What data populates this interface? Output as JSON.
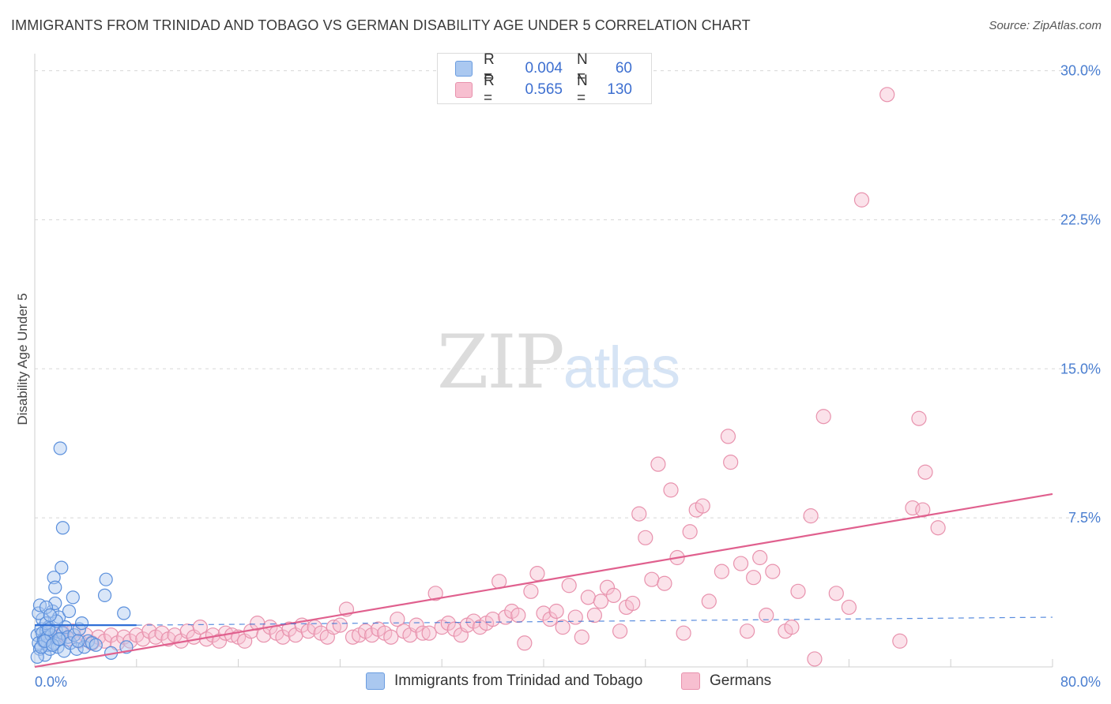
{
  "header": {
    "title": "IMMIGRANTS FROM TRINIDAD AND TOBAGO VS GERMAN DISABILITY AGE UNDER 5 CORRELATION CHART",
    "source": "Source: ZipAtlas.com"
  },
  "watermark": {
    "zip": "ZIP",
    "atlas": "atlas"
  },
  "legend": {
    "rows": [
      {
        "r_label": "R =",
        "r_value": "0.004",
        "n_label": "N =",
        "n_value": "60",
        "fill": "#aac8f0",
        "stroke": "#6b9de0"
      },
      {
        "r_label": "R =",
        "r_value": "0.565",
        "n_label": "N =",
        "n_value": "130",
        "fill": "#f7bfd0",
        "stroke": "#e892ad"
      }
    ]
  },
  "bottom_legend": {
    "series_a": "Immigrants from Trinidad and Tobago",
    "series_b": "Germans"
  },
  "chart_data": {
    "type": "scatter",
    "title": "IMMIGRANTS FROM TRINIDAD AND TOBAGO VS GERMAN DISABILITY AGE UNDER 5 CORRELATION CHART",
    "xlabel": "",
    "ylabel": "Disability Age Under 5",
    "xlim": [
      0,
      80
    ],
    "ylim": [
      0,
      30.5
    ],
    "y_ticks": [
      {
        "value": 7.5,
        "label": "7.5%"
      },
      {
        "value": 15.0,
        "label": "15.0%"
      },
      {
        "value": 22.5,
        "label": "22.5%"
      },
      {
        "value": 30.0,
        "label": "30.0%"
      }
    ],
    "x_tick_labels": [
      {
        "value": 0,
        "label": "0.0%"
      },
      {
        "value": 80,
        "label": "80.0%"
      }
    ],
    "x_minor_ticks": [
      8,
      16,
      24,
      32,
      40,
      48,
      56,
      64,
      72,
      80
    ],
    "colors": {
      "blue_fill": "#aac8f0",
      "blue_stroke": "#5a8fdc",
      "pink_fill": "#f7bfd0",
      "pink_stroke": "#e892ad",
      "blue_line": "#2f6fd6",
      "pink_line": "#e0608e"
    },
    "series": [
      {
        "name": "Immigrants from Trinidad and Tobago",
        "r": 0.004,
        "n": 60,
        "trend_solid": {
          "x": [
            0,
            8
          ],
          "y": [
            2.1,
            2.1
          ]
        },
        "trend_dashed": {
          "x": [
            8,
            80
          ],
          "y": [
            2.1,
            2.5
          ]
        },
        "points": [
          [
            0.2,
            1.6
          ],
          [
            0.3,
            1.2
          ],
          [
            0.4,
            0.9
          ],
          [
            0.5,
            1.9
          ],
          [
            0.6,
            2.4
          ],
          [
            0.7,
            1.4
          ],
          [
            0.8,
            0.6
          ],
          [
            0.9,
            1.8
          ],
          [
            1.0,
            1.1
          ],
          [
            1.1,
            2.0
          ],
          [
            0.3,
            2.7
          ],
          [
            0.4,
            3.1
          ],
          [
            0.6,
            1.7
          ],
          [
            0.7,
            1.3
          ],
          [
            0.9,
            2.2
          ],
          [
            1.0,
            1.5
          ],
          [
            1.2,
            0.9
          ],
          [
            1.3,
            1.6
          ],
          [
            1.4,
            2.8
          ],
          [
            1.5,
            1.2
          ],
          [
            1.6,
            3.2
          ],
          [
            1.7,
            1.8
          ],
          [
            1.8,
            1.0
          ],
          [
            1.9,
            2.5
          ],
          [
            2.0,
            1.4
          ],
          [
            2.1,
            5.0
          ],
          [
            2.2,
            1.7
          ],
          [
            2.3,
            0.8
          ],
          [
            2.4,
            2.0
          ],
          [
            2.6,
            1.5
          ],
          [
            2.7,
            2.8
          ],
          [
            2.8,
            1.2
          ],
          [
            3.0,
            3.5
          ],
          [
            3.1,
            1.6
          ],
          [
            3.3,
            0.9
          ],
          [
            3.5,
            1.9
          ],
          [
            3.7,
            2.2
          ],
          [
            0.2,
            0.5
          ],
          [
            0.5,
            1.0
          ],
          [
            0.8,
            1.3
          ],
          [
            1.1,
            1.9
          ],
          [
            1.4,
            1.1
          ],
          [
            1.7,
            2.3
          ],
          [
            2.0,
            11.0
          ],
          [
            2.2,
            7.0
          ],
          [
            1.5,
            4.5
          ],
          [
            1.6,
            4.0
          ],
          [
            0.9,
            3.0
          ],
          [
            1.2,
            2.6
          ],
          [
            1.9,
            1.4
          ],
          [
            3.9,
            1.0
          ],
          [
            4.2,
            1.3
          ],
          [
            4.5,
            1.2
          ],
          [
            5.5,
            3.6
          ],
          [
            5.6,
            4.4
          ],
          [
            6.0,
            0.7
          ],
          [
            7.0,
            2.7
          ],
          [
            7.2,
            1.0
          ],
          [
            4.8,
            1.1
          ],
          [
            3.4,
            1.3
          ]
        ]
      },
      {
        "name": "Germans",
        "r": 0.565,
        "n": 130,
        "trend": {
          "x": [
            0,
            80
          ],
          "y": [
            0.0,
            8.7
          ]
        },
        "points": [
          [
            1.2,
            1.6
          ],
          [
            1.8,
            1.5
          ],
          [
            2.2,
            1.7
          ],
          [
            2.6,
            1.4
          ],
          [
            3.0,
            1.8
          ],
          [
            3.5,
            1.3
          ],
          [
            4.0,
            1.6
          ],
          [
            4.5,
            1.2
          ],
          [
            5.0,
            1.5
          ],
          [
            5.5,
            1.3
          ],
          [
            6.0,
            1.6
          ],
          [
            6.5,
            1.2
          ],
          [
            7.0,
            1.5
          ],
          [
            7.5,
            1.3
          ],
          [
            8.0,
            1.6
          ],
          [
            8.5,
            1.4
          ],
          [
            9.0,
            1.8
          ],
          [
            9.5,
            1.5
          ],
          [
            10.0,
            1.7
          ],
          [
            10.5,
            1.4
          ],
          [
            11.0,
            1.6
          ],
          [
            11.5,
            1.3
          ],
          [
            12.0,
            1.8
          ],
          [
            12.5,
            1.5
          ],
          [
            13.0,
            2.0
          ],
          [
            13.5,
            1.4
          ],
          [
            14.0,
            1.6
          ],
          [
            14.5,
            1.3
          ],
          [
            15.0,
            1.7
          ],
          [
            15.5,
            1.6
          ],
          [
            16.0,
            1.5
          ],
          [
            16.5,
            1.3
          ],
          [
            17.0,
            1.8
          ],
          [
            17.5,
            2.2
          ],
          [
            18.0,
            1.6
          ],
          [
            18.5,
            2.0
          ],
          [
            19.0,
            1.7
          ],
          [
            19.5,
            1.5
          ],
          [
            20.0,
            1.9
          ],
          [
            20.5,
            1.6
          ],
          [
            21.0,
            2.1
          ],
          [
            21.5,
            1.8
          ],
          [
            22.0,
            2.0
          ],
          [
            22.5,
            1.7
          ],
          [
            23.0,
            1.5
          ],
          [
            23.5,
            2.0
          ],
          [
            24.0,
            2.1
          ],
          [
            24.5,
            2.9
          ],
          [
            25.0,
            1.5
          ],
          [
            25.5,
            1.6
          ],
          [
            26.0,
            1.8
          ],
          [
            26.5,
            1.6
          ],
          [
            27.0,
            1.9
          ],
          [
            27.5,
            1.7
          ],
          [
            28.0,
            1.5
          ],
          [
            28.5,
            2.4
          ],
          [
            29.0,
            1.8
          ],
          [
            29.5,
            1.6
          ],
          [
            30.0,
            2.1
          ],
          [
            30.5,
            1.7
          ],
          [
            31.0,
            1.7
          ],
          [
            31.5,
            3.7
          ],
          [
            32.0,
            2.0
          ],
          [
            32.5,
            2.2
          ],
          [
            33.0,
            1.9
          ],
          [
            33.5,
            1.6
          ],
          [
            34.0,
            2.1
          ],
          [
            34.5,
            2.3
          ],
          [
            35.0,
            2.0
          ],
          [
            35.5,
            2.2
          ],
          [
            36.0,
            2.4
          ],
          [
            36.5,
            4.3
          ],
          [
            37.0,
            2.5
          ],
          [
            37.5,
            2.8
          ],
          [
            38.0,
            2.6
          ],
          [
            38.5,
            1.2
          ],
          [
            39.0,
            3.8
          ],
          [
            39.5,
            4.7
          ],
          [
            40.0,
            2.7
          ],
          [
            40.5,
            2.4
          ],
          [
            41.0,
            2.8
          ],
          [
            41.5,
            2.0
          ],
          [
            42.0,
            4.1
          ],
          [
            42.5,
            2.5
          ],
          [
            43.0,
            1.5
          ],
          [
            43.5,
            3.5
          ],
          [
            44.0,
            2.6
          ],
          [
            44.5,
            3.3
          ],
          [
            45.0,
            4.0
          ],
          [
            45.5,
            3.6
          ],
          [
            46.0,
            1.8
          ],
          [
            46.5,
            3.0
          ],
          [
            47.0,
            3.2
          ],
          [
            47.5,
            7.7
          ],
          [
            48.0,
            6.5
          ],
          [
            48.5,
            4.4
          ],
          [
            49.0,
            10.2
          ],
          [
            49.5,
            4.2
          ],
          [
            50.0,
            8.9
          ],
          [
            50.5,
            5.5
          ],
          [
            51.0,
            1.7
          ],
          [
            51.5,
            6.8
          ],
          [
            52.0,
            7.9
          ],
          [
            52.5,
            8.1
          ],
          [
            53.0,
            3.3
          ],
          [
            54.0,
            4.8
          ],
          [
            54.5,
            11.6
          ],
          [
            54.7,
            10.3
          ],
          [
            55.5,
            5.2
          ],
          [
            56.0,
            1.8
          ],
          [
            56.5,
            4.5
          ],
          [
            57.0,
            5.5
          ],
          [
            57.5,
            2.6
          ],
          [
            58.0,
            4.8
          ],
          [
            59.0,
            1.8
          ],
          [
            59.5,
            2.0
          ],
          [
            60.0,
            3.8
          ],
          [
            61.0,
            7.6
          ],
          [
            61.3,
            0.4
          ],
          [
            62.0,
            12.6
          ],
          [
            63.0,
            3.7
          ],
          [
            64.0,
            3.0
          ],
          [
            65.0,
            23.5
          ],
          [
            67.0,
            28.8
          ],
          [
            68.0,
            1.3
          ],
          [
            69.0,
            8.0
          ],
          [
            69.5,
            12.5
          ],
          [
            70.0,
            9.8
          ],
          [
            71.0,
            7.0
          ],
          [
            69.8,
            7.9
          ]
        ]
      }
    ]
  }
}
